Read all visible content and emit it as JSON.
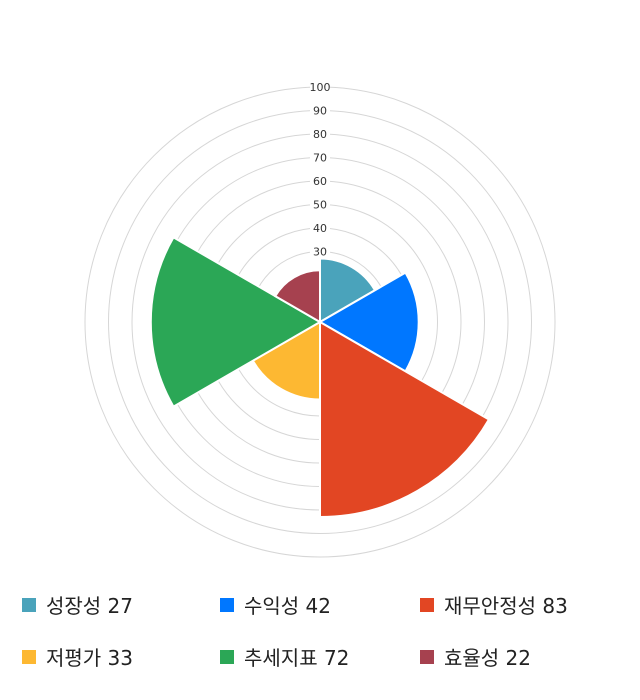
{
  "chart_data": {
    "type": "polar-area",
    "categories": [
      "성장성",
      "수익성",
      "재무안정성",
      "저평가",
      "추세지표",
      "효율성"
    ],
    "values": [
      27,
      42,
      83,
      33,
      72,
      22
    ],
    "colors": [
      "#4AA3BB",
      "#0077FF",
      "#E24623",
      "#FDB832",
      "#2BA756",
      "#A6414F"
    ],
    "rlim": [
      0,
      100
    ],
    "tick_labels": [
      "30",
      "40",
      "50",
      "60",
      "70",
      "80",
      "90",
      "100"
    ],
    "grid": true,
    "legend_position": "bottom"
  },
  "legend": [
    {
      "label": "성장성 27"
    },
    {
      "label": "수익성 42"
    },
    {
      "label": "재무안정성 83"
    },
    {
      "label": "저평가 33"
    },
    {
      "label": "추세지표 72"
    },
    {
      "label": "효율성 22"
    }
  ]
}
